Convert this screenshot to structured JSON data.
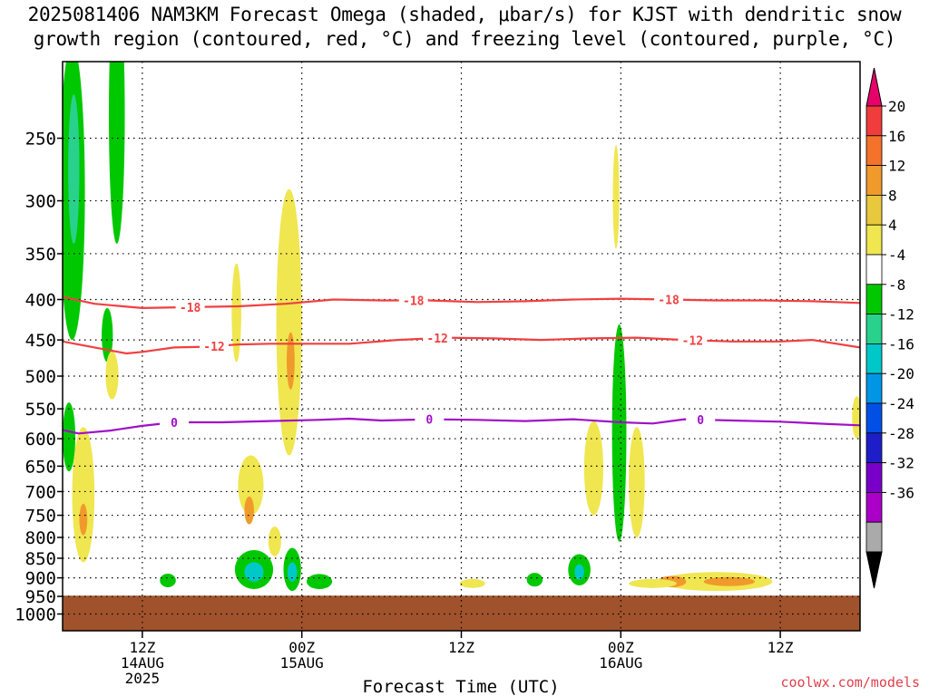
{
  "title": {
    "line1": "2025081406 NAM3KM Forecast Omega (shaded, μbar/s) for KJST with dendritic snow",
    "line2": "growth region (contoured, red, °C) and freezing level (contoured, purple, °C)"
  },
  "credit": "coolwx.com/models",
  "chart_data": {
    "type": "heatmap",
    "title": "2025081406 NAM3KM Forecast Omega (shaded, μbar/s) for KJST with dendritic snow growth region (contoured, red, °C) and freezing level (contoured, purple, °C)",
    "xlabel": "Forecast Time (UTC)",
    "ylabel": "",
    "x_range_hours": [
      -5,
      45
    ],
    "x_ticks": [
      {
        "h": 0,
        "l1": "12Z",
        "l2": "14AUG",
        "l3": "2025"
      },
      {
        "h": 10,
        "l1": "00Z",
        "l2": "15AUG",
        "l3": ""
      },
      {
        "h": 20,
        "l1": "12Z",
        "l2": "",
        "l3": ""
      },
      {
        "h": 30,
        "l1": "00Z",
        "l2": "16AUG",
        "l3": ""
      },
      {
        "h": 40,
        "l1": "12Z",
        "l2": "",
        "l3": ""
      }
    ],
    "y_ticks": [
      250,
      300,
      350,
      400,
      450,
      500,
      550,
      600,
      650,
      700,
      750,
      800,
      850,
      900,
      950,
      1000
    ],
    "y_range_hPa": [
      200,
      1050
    ],
    "log_pressure_axis": true,
    "grid": true,
    "colorbar": {
      "unit": "μbar/s",
      "labels": [
        "20",
        "16",
        "12",
        "8",
        "4",
        "-4",
        "-8",
        "-12",
        "-16",
        "-20",
        "-24",
        "-28",
        "-32",
        "-36"
      ],
      "colors": [
        "#e8006a",
        "#f03c3c",
        "#f4722a",
        "#f09a2c",
        "#e8c83c",
        "#f0e650",
        "#ffffff",
        "#00c800",
        "#28d28c",
        "#00c8c8",
        "#0096e6",
        "#0050e6",
        "#1e1ec8",
        "#7800c8",
        "#aa00c8",
        "#aaaaaa",
        "#000000"
      ]
    },
    "contours": [
      {
        "label": "-18",
        "color": "#f04040",
        "levels_hPa": [
          [
            -5,
            397
          ],
          [
            -3,
            405
          ],
          [
            0,
            410
          ],
          [
            3,
            409
          ],
          [
            6,
            408
          ],
          [
            9,
            405
          ],
          [
            12,
            400
          ],
          [
            15,
            401
          ],
          [
            18,
            401
          ],
          [
            21,
            403
          ],
          [
            24,
            402
          ],
          [
            27,
            400
          ],
          [
            30,
            399
          ],
          [
            33,
            400
          ],
          [
            36,
            401
          ],
          [
            39,
            401
          ],
          [
            42,
            402
          ],
          [
            45,
            404
          ]
        ],
        "label_at_h": [
          3,
          17,
          33
        ]
      },
      {
        "label": "-12",
        "color": "#f04040",
        "levels_hPa": [
          [
            -5,
            452
          ],
          [
            -3,
            460
          ],
          [
            -1,
            468
          ],
          [
            0,
            466
          ],
          [
            2,
            460
          ],
          [
            4,
            459
          ],
          [
            6,
            456
          ],
          [
            8,
            455
          ],
          [
            10,
            455
          ],
          [
            13,
            455
          ],
          [
            16,
            450
          ],
          [
            19,
            447
          ],
          [
            22,
            448
          ],
          [
            25,
            450
          ],
          [
            28,
            448
          ],
          [
            31,
            447
          ],
          [
            34,
            450
          ],
          [
            37,
            452
          ],
          [
            40,
            452
          ],
          [
            42,
            450
          ],
          [
            45,
            460
          ]
        ],
        "label_at_h": [
          4.5,
          18.5,
          34.5
        ]
      },
      {
        "label": "0",
        "color": "#a010c8",
        "levels_hPa": [
          [
            -5,
            585
          ],
          [
            -4,
            591
          ],
          [
            -2,
            586
          ],
          [
            0,
            578
          ],
          [
            2,
            572
          ],
          [
            5,
            572
          ],
          [
            8,
            570
          ],
          [
            11,
            568
          ],
          [
            13,
            566
          ],
          [
            15,
            569
          ],
          [
            18,
            567
          ],
          [
            21,
            568
          ],
          [
            24,
            570
          ],
          [
            27,
            567
          ],
          [
            30,
            572
          ],
          [
            32,
            574
          ],
          [
            34,
            567
          ],
          [
            37,
            569
          ],
          [
            40,
            571
          ],
          [
            43,
            575
          ],
          [
            45,
            577
          ]
        ],
        "label_at_h": [
          2,
          18,
          35
        ]
      }
    ],
    "shaded_regions": [
      {
        "omega": -6,
        "center": [
          -4.4,
          320
        ],
        "half_width_h": 0.8,
        "half_height_hPa": 130
      },
      {
        "omega": -10,
        "center": [
          -4.3,
          280
        ],
        "half_width_h": 0.35,
        "half_height_hPa": 60
      },
      {
        "omega": -6,
        "center": [
          -1.6,
          250
        ],
        "half_width_h": 0.5,
        "half_height_hPa": 90
      },
      {
        "omega": -6,
        "center": [
          -2.2,
          445
        ],
        "half_width_h": 0.35,
        "half_height_hPa": 35
      },
      {
        "omega": -6,
        "center": [
          -4.6,
          600
        ],
        "half_width_h": 0.4,
        "half_height_hPa": 60
      },
      {
        "omega": 6,
        "center": [
          -1.9,
          500
        ],
        "half_width_h": 0.4,
        "half_height_hPa": 35
      },
      {
        "omega": 6,
        "center": [
          -3.7,
          720
        ],
        "half_width_h": 0.7,
        "half_height_hPa": 140
      },
      {
        "omega": 10,
        "center": [
          -3.7,
          760
        ],
        "half_width_h": 0.25,
        "half_height_hPa": 35
      },
      {
        "omega": 6,
        "center": [
          5.9,
          420
        ],
        "half_width_h": 0.3,
        "half_height_hPa": 60
      },
      {
        "omega": 6,
        "center": [
          9.2,
          460
        ],
        "half_width_h": 0.8,
        "half_height_hPa": 170
      },
      {
        "omega": 10,
        "center": [
          9.3,
          480
        ],
        "half_width_h": 0.25,
        "half_height_hPa": 40
      },
      {
        "omega": 6,
        "center": [
          6.8,
          690
        ],
        "half_width_h": 0.8,
        "half_height_hPa": 60
      },
      {
        "omega": 10,
        "center": [
          6.7,
          740
        ],
        "half_width_h": 0.3,
        "half_height_hPa": 30
      },
      {
        "omega": 6,
        "center": [
          8.3,
          810
        ],
        "half_width_h": 0.4,
        "half_height_hPa": 35
      },
      {
        "omega": -6,
        "center": [
          7.0,
          880
        ],
        "half_width_h": 1.2,
        "half_height_hPa": 50
      },
      {
        "omega": -14,
        "center": [
          7.0,
          885
        ],
        "half_width_h": 0.6,
        "half_height_hPa": 25
      },
      {
        "omega": -6,
        "center": [
          9.4,
          880
        ],
        "half_width_h": 0.55,
        "half_height_hPa": 55
      },
      {
        "omega": -14,
        "center": [
          9.4,
          885
        ],
        "half_width_h": 0.3,
        "half_height_hPa": 25
      },
      {
        "omega": -6,
        "center": [
          11.1,
          910
        ],
        "half_width_h": 0.8,
        "half_height_hPa": 20
      },
      {
        "omega": -6,
        "center": [
          1.6,
          907
        ],
        "half_width_h": 0.5,
        "half_height_hPa": 18
      },
      {
        "omega": 6,
        "center": [
          28.3,
          660
        ],
        "half_width_h": 0.6,
        "half_height_hPa": 90
      },
      {
        "omega": 6,
        "center": [
          31.0,
          690
        ],
        "half_width_h": 0.5,
        "half_height_hPa": 110
      },
      {
        "omega": -6,
        "center": [
          29.9,
          620
        ],
        "half_width_h": 0.45,
        "half_height_hPa": 190
      },
      {
        "omega": -6,
        "center": [
          27.4,
          880
        ],
        "half_width_h": 0.7,
        "half_height_hPa": 40
      },
      {
        "omega": -14,
        "center": [
          27.4,
          885
        ],
        "half_width_h": 0.3,
        "half_height_hPa": 20
      },
      {
        "omega": -6,
        "center": [
          24.6,
          905
        ],
        "half_width_h": 0.5,
        "half_height_hPa": 18
      },
      {
        "omega": 6,
        "center": [
          36.0,
          910
        ],
        "half_width_h": 3.5,
        "half_height_hPa": 25
      },
      {
        "omega": 10,
        "center": [
          33.2,
          910
        ],
        "half_width_h": 0.9,
        "half_height_hPa": 15
      },
      {
        "omega": 10,
        "center": [
          36.8,
          910
        ],
        "half_width_h": 1.6,
        "half_height_hPa": 12
      },
      {
        "omega": 6,
        "center": [
          32.0,
          915
        ],
        "half_width_h": 1.5,
        "half_height_hPa": 12
      },
      {
        "omega": 6,
        "center": [
          20.7,
          915
        ],
        "half_width_h": 0.8,
        "half_height_hPa": 12
      },
      {
        "omega": 6,
        "center": [
          44.8,
          565
        ],
        "half_width_h": 0.3,
        "half_height_hPa": 35
      },
      {
        "omega": 6,
        "center": [
          29.7,
          300
        ],
        "half_width_h": 0.2,
        "half_height_hPa": 45
      }
    ],
    "terrain": {
      "color": "#a0522d",
      "top_hPa": 948
    }
  }
}
